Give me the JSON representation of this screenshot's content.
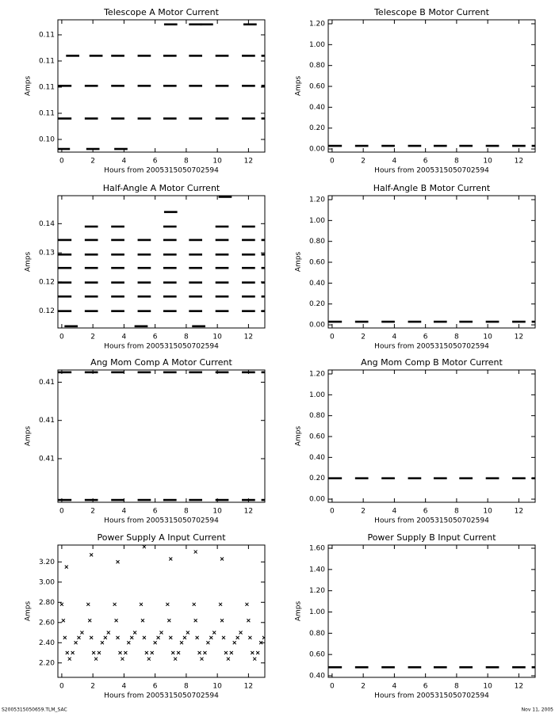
{
  "footer": {
    "left": "S2005315050659.TLM_SAC",
    "right": "Nov 11, 2005"
  },
  "chart_data": [
    {
      "type": "scatter",
      "marker": "dash",
      "color": "#000000",
      "title": "Telescope A Motor Current",
      "xlabel": "Hours from 2005315050702594",
      "ylabel": "Amps",
      "x": [
        0.2,
        1.9,
        3.6,
        5.3,
        6.95,
        8.6,
        10.3,
        12.0,
        13.25,
        0.2,
        1.9,
        3.6,
        5.3,
        6.95,
        8.6,
        10.3,
        12.0,
        13.25,
        0.7,
        2.2,
        3.6,
        5.3,
        6.95,
        8.6,
        10.3,
        12.0,
        13.25,
        7.0,
        8.6,
        9.3,
        12.1,
        0.1,
        2.0,
        3.8
      ],
      "values": [
        0.1081,
        0.1081,
        0.1081,
        0.1081,
        0.1081,
        0.1081,
        0.1081,
        0.1081,
        0.1081,
        0.1056,
        0.1056,
        0.1056,
        0.1056,
        0.1056,
        0.1056,
        0.1056,
        0.1056,
        0.1056,
        0.1104,
        0.1104,
        0.1104,
        0.1104,
        0.1104,
        0.1104,
        0.1104,
        0.1104,
        0.1104,
        0.1128,
        0.1128,
        0.1128,
        0.1128,
        0.10327,
        0.10327,
        0.10327
      ],
      "xlim": [
        -0.25,
        13.05
      ],
      "xticks": [
        0,
        2,
        4,
        6,
        8,
        10,
        12
      ],
      "ylim": [
        0.10303,
        0.11315
      ],
      "yticks": [
        {
          "value": 0.104,
          "label": "0.10"
        },
        {
          "value": 0.106,
          "label": "0.11"
        },
        {
          "value": 0.108,
          "label": "0.11"
        },
        {
          "value": 0.11,
          "label": "0.11"
        },
        {
          "value": 0.112,
          "label": "0.11"
        }
      ]
    },
    {
      "type": "scatter",
      "marker": "dash",
      "color": "#000000",
      "title": "Telescope B Motor Current",
      "xlabel": "Hours from 2005315050702594",
      "ylabel": "Amps",
      "x": [
        0.2,
        1.9,
        3.6,
        5.3,
        6.95,
        8.6,
        10.3,
        12.0,
        13.25
      ],
      "values": [
        0.03,
        0.03,
        0.03,
        0.03,
        0.03,
        0.03,
        0.03,
        0.03,
        0.03
      ],
      "xlim": [
        -0.25,
        13.05
      ],
      "xticks": [
        0,
        2,
        4,
        6,
        8,
        10,
        12
      ],
      "ylim": [
        -0.03,
        1.238
      ],
      "yticks": [
        {
          "value": 0,
          "label": "0.00"
        },
        {
          "value": 0.2,
          "label": "0.20"
        },
        {
          "value": 0.4,
          "label": "0.40"
        },
        {
          "value": 0.6,
          "label": "0.60"
        },
        {
          "value": 0.8,
          "label": "0.80"
        },
        {
          "value": 1.0,
          "label": "1.00"
        },
        {
          "value": 1.2,
          "label": "1.20"
        }
      ]
    },
    {
      "type": "scatter",
      "marker": "dash",
      "color": "#000000",
      "title": "Half-Angle A Motor Current",
      "xlabel": "Hours from 2005315050702594",
      "ylabel": "Amps",
      "x": [
        0.2,
        1.9,
        3.6,
        5.3,
        6.95,
        8.6,
        10.3,
        12.0,
        13.25,
        0.2,
        1.9,
        3.6,
        5.3,
        6.95,
        8.6,
        10.3,
        12.0,
        13.25,
        0.2,
        1.9,
        3.6,
        5.3,
        6.95,
        8.6,
        10.3,
        12.0,
        13.25,
        0.2,
        1.9,
        3.6,
        5.3,
        6.95,
        8.6,
        10.3,
        12.0,
        13.25,
        0.2,
        1.9,
        3.6,
        5.3,
        6.95,
        8.6,
        10.3,
        12.0,
        13.25,
        0.2,
        1.9,
        3.6,
        5.3,
        6.95,
        8.6,
        10.3,
        12.0,
        13.25,
        1.9,
        3.6,
        6.95,
        10.3,
        12.0,
        7.0,
        10.5,
        0.6,
        5.1,
        8.8
      ],
      "values": [
        0.12,
        0.12,
        0.12,
        0.12,
        0.12,
        0.12,
        0.12,
        0.12,
        0.12,
        0.1225,
        0.1225,
        0.1225,
        0.1225,
        0.1225,
        0.1225,
        0.1225,
        0.1225,
        0.1225,
        0.1249,
        0.1249,
        0.1249,
        0.1249,
        0.1249,
        0.1249,
        0.1249,
        0.1249,
        0.1249,
        0.1274,
        0.1274,
        0.1274,
        0.1274,
        0.1274,
        0.1274,
        0.1274,
        0.1274,
        0.1274,
        0.1297,
        0.1297,
        0.1297,
        0.1297,
        0.1297,
        0.1297,
        0.1297,
        0.1297,
        0.1297,
        0.1322,
        0.1322,
        0.1322,
        0.1322,
        0.1322,
        0.1322,
        0.1322,
        0.1322,
        0.1322,
        0.1345,
        0.1345,
        0.1345,
        0.1345,
        0.1345,
        0.137,
        0.1396,
        0.1174,
        0.1174,
        0.1174
      ],
      "xlim": [
        -0.25,
        13.05
      ],
      "xticks": [
        0,
        2,
        4,
        6,
        8,
        10,
        12
      ],
      "ylim": [
        0.1171,
        0.1398
      ],
      "yticks": [
        {
          "value": 0.12,
          "label": "0.12"
        },
        {
          "value": 0.125,
          "label": "0.12"
        },
        {
          "value": 0.13,
          "label": "0.13"
        },
        {
          "value": 0.135,
          "label": "0.14"
        }
      ]
    },
    {
      "type": "scatter",
      "marker": "dash",
      "color": "#000000",
      "title": "Half-Angle B Motor Current",
      "xlabel": "Hours from 2005315050702594",
      "ylabel": "Amps",
      "x": [
        0.2,
        1.9,
        3.6,
        5.3,
        6.95,
        8.6,
        10.3,
        12.0,
        13.25
      ],
      "values": [
        0.03,
        0.03,
        0.03,
        0.03,
        0.03,
        0.03,
        0.03,
        0.03,
        0.03
      ],
      "xlim": [
        -0.25,
        13.05
      ],
      "xticks": [
        0,
        2,
        4,
        6,
        8,
        10,
        12
      ],
      "ylim": [
        -0.03,
        1.238
      ],
      "yticks": [
        {
          "value": 0,
          "label": "0.00"
        },
        {
          "value": 0.2,
          "label": "0.20"
        },
        {
          "value": 0.4,
          "label": "0.40"
        },
        {
          "value": 0.6,
          "label": "0.60"
        },
        {
          "value": 0.8,
          "label": "0.80"
        },
        {
          "value": 1.0,
          "label": "1.00"
        },
        {
          "value": 1.2,
          "label": "1.20"
        }
      ]
    },
    {
      "type": "scatter",
      "marker": "dash",
      "color": "#000000",
      "title": "Ang Mom Comp A Motor Current",
      "xlabel": "Hours from 2005315050702594",
      "ylabel": "Amps",
      "x": [
        0.2,
        1.9,
        3.6,
        5.3,
        6.95,
        8.6,
        10.3,
        12.0,
        13.25,
        0.2,
        1.9,
        3.6,
        5.3,
        6.95,
        8.6,
        10.3,
        12.0,
        13.25
      ],
      "values": [
        0.41063,
        0.41063,
        0.41063,
        0.41063,
        0.41063,
        0.41063,
        0.41063,
        0.41063,
        0.41063,
        0.40896,
        0.40896,
        0.40896,
        0.40896,
        0.40896,
        0.40896,
        0.40896,
        0.40896,
        0.40896
      ],
      "xlim": [
        -0.25,
        13.05
      ],
      "xticks": [
        0,
        2,
        4,
        6,
        8,
        10,
        12
      ],
      "ylim": [
        0.40893,
        0.41066
      ],
      "yticks": [
        {
          "value": 0.4095,
          "label": "0.41"
        },
        {
          "value": 0.41,
          "label": "0.41"
        },
        {
          "value": 0.4105,
          "label": "0.41"
        }
      ]
    },
    {
      "type": "scatter",
      "marker": "dash",
      "color": "#000000",
      "title": "Ang Mom Comp B Motor Current",
      "xlabel": "Hours from 2005315050702594",
      "ylabel": "Amps",
      "x": [
        0.2,
        1.9,
        3.6,
        5.3,
        6.95,
        8.6,
        10.3,
        12.0,
        13.25
      ],
      "values": [
        0.2,
        0.2,
        0.2,
        0.2,
        0.2,
        0.2,
        0.2,
        0.2,
        0.2
      ],
      "xlim": [
        -0.25,
        13.05
      ],
      "xticks": [
        0,
        2,
        4,
        6,
        8,
        10,
        12
      ],
      "ylim": [
        -0.03,
        1.238
      ],
      "yticks": [
        {
          "value": 0,
          "label": "0.00"
        },
        {
          "value": 0.2,
          "label": "0.20"
        },
        {
          "value": 0.4,
          "label": "0.40"
        },
        {
          "value": 0.6,
          "label": "0.60"
        },
        {
          "value": 0.8,
          "label": "0.80"
        },
        {
          "value": 1.0,
          "label": "1.00"
        },
        {
          "value": 1.2,
          "label": "1.20"
        }
      ]
    },
    {
      "type": "scatter",
      "marker": "cross",
      "color": "#000000",
      "title": "Power Supply A Input Current",
      "xlabel": "Hours from 2005315050702594",
      "ylabel": "Amps",
      "x": [
        0.0,
        0.1,
        0.2,
        0.35,
        0.5,
        0.7,
        0.9,
        1.1,
        1.3,
        1.7,
        1.8,
        1.9,
        2.05,
        2.2,
        2.4,
        2.6,
        2.8,
        3.0,
        3.4,
        3.5,
        3.6,
        3.75,
        3.9,
        4.1,
        4.3,
        4.5,
        4.7,
        5.1,
        5.2,
        5.3,
        5.45,
        5.6,
        5.8,
        6.0,
        6.2,
        6.4,
        6.8,
        6.9,
        7.0,
        7.15,
        7.3,
        7.5,
        7.7,
        7.9,
        8.1,
        8.5,
        8.6,
        8.7,
        8.85,
        9.0,
        9.2,
        9.4,
        9.6,
        9.8,
        10.2,
        10.3,
        10.4,
        10.55,
        10.7,
        10.9,
        11.1,
        11.3,
        11.5,
        11.9,
        12.0,
        12.1,
        12.25,
        12.4,
        12.6,
        12.8,
        13.0,
        13.2,
        0.3,
        1.9,
        3.6,
        5.3,
        7.0,
        8.6,
        10.3,
        13.3
      ],
      "values": [
        2.78,
        2.62,
        2.45,
        2.3,
        2.24,
        2.3,
        2.4,
        2.45,
        2.5,
        2.78,
        2.62,
        2.45,
        2.3,
        2.24,
        2.3,
        2.4,
        2.45,
        2.5,
        2.78,
        2.62,
        2.45,
        2.3,
        2.24,
        2.3,
        2.4,
        2.45,
        2.5,
        2.78,
        2.62,
        2.45,
        2.3,
        2.24,
        2.3,
        2.4,
        2.45,
        2.5,
        2.78,
        2.62,
        2.45,
        2.3,
        2.24,
        2.3,
        2.4,
        2.45,
        2.5,
        2.78,
        2.62,
        2.45,
        2.3,
        2.24,
        2.3,
        2.4,
        2.45,
        2.5,
        2.78,
        2.62,
        2.45,
        2.3,
        2.24,
        2.3,
        2.4,
        2.45,
        2.5,
        2.78,
        2.62,
        2.45,
        2.3,
        2.24,
        2.3,
        2.4,
        2.45,
        2.75,
        3.15,
        3.27,
        3.2,
        3.35,
        3.23,
        3.3,
        3.23,
        2.45
      ],
      "xlim": [
        -0.25,
        13.05
      ],
      "xticks": [
        0,
        2,
        4,
        6,
        8,
        10,
        12
      ],
      "ylim": [
        2.057,
        3.367
      ],
      "yticks": [
        {
          "value": 2.2,
          "label": "2.20"
        },
        {
          "value": 2.4,
          "label": "2.40"
        },
        {
          "value": 2.6,
          "label": "2.60"
        },
        {
          "value": 2.8,
          "label": "2.80"
        },
        {
          "value": 3.0,
          "label": "3.00"
        },
        {
          "value": 3.2,
          "label": "3.20"
        }
      ]
    },
    {
      "type": "scatter",
      "marker": "dash",
      "color": "#000000",
      "title": "Power Supply B Input Current",
      "xlabel": "Hours from 2005315050702594",
      "ylabel": "Amps",
      "x": [
        0.2,
        1.9,
        3.6,
        5.3,
        6.95,
        8.6,
        10.3,
        12.0,
        13.25
      ],
      "values": [
        0.48,
        0.48,
        0.48,
        0.48,
        0.48,
        0.48,
        0.48,
        0.48,
        0.48
      ],
      "xlim": [
        -0.25,
        13.05
      ],
      "xticks": [
        0,
        2,
        4,
        6,
        8,
        10,
        12
      ],
      "ylim": [
        0.385,
        1.63
      ],
      "yticks": [
        {
          "value": 0.4,
          "label": "0.40"
        },
        {
          "value": 0.6,
          "label": "0.60"
        },
        {
          "value": 0.8,
          "label": "0.80"
        },
        {
          "value": 1.0,
          "label": "1.00"
        },
        {
          "value": 1.2,
          "label": "1.20"
        },
        {
          "value": 1.4,
          "label": "1.40"
        },
        {
          "value": 1.6,
          "label": "1.60"
        }
      ]
    }
  ]
}
